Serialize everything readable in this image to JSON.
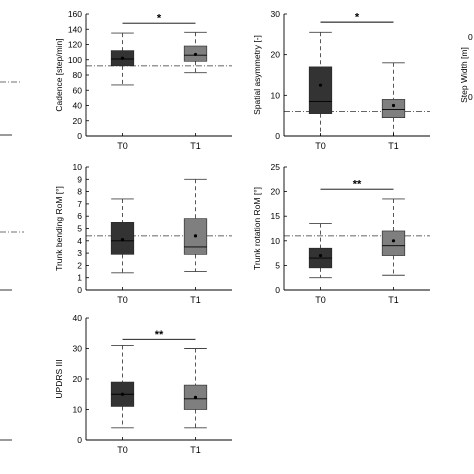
{
  "colors": {
    "t0": "#333333",
    "t1": "#7f7f7f",
    "axis": "#000000",
    "whisker": "#444444"
  },
  "chart_data": [
    {
      "type": "box",
      "ylabel": "Cadence [step/min]",
      "categories": [
        "T0",
        "T1"
      ],
      "ylim": [
        0,
        160
      ],
      "yticks": [
        0,
        20,
        40,
        60,
        80,
        100,
        120,
        140,
        160
      ],
      "reference_line": 92,
      "boxes": [
        {
          "category": "T0",
          "min": 67,
          "q1": 92,
          "median": 101,
          "q3": 112,
          "max": 135,
          "mean": 102
        },
        {
          "category": "T1",
          "min": 83,
          "q1": 98,
          "median": 106,
          "q3": 118,
          "max": 136,
          "mean": 107
        }
      ],
      "significance": [
        {
          "between": [
            "T0",
            "T1"
          ],
          "label": "*",
          "y": 148
        }
      ]
    },
    {
      "type": "box",
      "ylabel": "Spatial asymmetry [-]",
      "categories": [
        "T0",
        "T1"
      ],
      "ylim": [
        0,
        30
      ],
      "yticks": [
        0,
        10,
        20,
        30
      ],
      "reference_line": 6,
      "boxes": [
        {
          "category": "T0",
          "min": 0,
          "q1": 5.5,
          "median": 8.5,
          "q3": 17,
          "max": 25.5,
          "mean": 12.5
        },
        {
          "category": "T1",
          "min": 0,
          "q1": 4.5,
          "median": 6.5,
          "q3": 9,
          "max": 18,
          "mean": 7.5
        }
      ],
      "significance": [
        {
          "between": [
            "T0",
            "T1"
          ],
          "label": "*",
          "y": 28
        }
      ]
    },
    {
      "type": "box",
      "ylabel": "Trunk bending RoM [°]",
      "categories": [
        "T0",
        "T1"
      ],
      "ylim": [
        0,
        10
      ],
      "yticks": [
        0,
        1,
        2,
        3,
        4,
        5,
        6,
        7,
        8,
        9,
        10
      ],
      "reference_line": 4.4,
      "boxes": [
        {
          "category": "T0",
          "min": 1.4,
          "q1": 2.9,
          "median": 4.0,
          "q3": 5.5,
          "max": 7.4,
          "mean": 4.1
        },
        {
          "category": "T1",
          "min": 1.5,
          "q1": 2.9,
          "median": 3.5,
          "q3": 5.8,
          "max": 9.0,
          "mean": 4.4
        }
      ],
      "significance": []
    },
    {
      "type": "box",
      "ylabel": "Trunk rotation RoM [°]",
      "categories": [
        "T0",
        "T1"
      ],
      "ylim": [
        0,
        25
      ],
      "yticks": [
        0,
        5,
        10,
        15,
        20,
        25
      ],
      "reference_line": 11,
      "boxes": [
        {
          "category": "T0",
          "min": 2.5,
          "q1": 4.5,
          "median": 6.5,
          "q3": 8.5,
          "max": 13.5,
          "mean": 7
        },
        {
          "category": "T1",
          "min": 3,
          "q1": 7,
          "median": 9,
          "q3": 12,
          "max": 18.5,
          "mean": 10
        }
      ],
      "significance": [
        {
          "between": [
            "T0",
            "T1"
          ],
          "label": "**",
          "y": 20.5
        }
      ]
    },
    {
      "type": "box",
      "ylabel": "UPDRS III",
      "categories": [
        "T0",
        "T1"
      ],
      "ylim": [
        0,
        40
      ],
      "yticks": [
        0,
        10,
        20,
        30,
        40
      ],
      "reference_line": null,
      "boxes": [
        {
          "category": "T0",
          "min": 4,
          "q1": 11,
          "median": 15,
          "q3": 19,
          "max": 31,
          "mean": 15
        },
        {
          "category": "T1",
          "min": 4,
          "q1": 10,
          "median": 13.5,
          "q3": 18,
          "max": 30,
          "mean": 14
        }
      ],
      "significance": [
        {
          "between": [
            "T0",
            "T1"
          ],
          "label": "**",
          "y": 33
        }
      ]
    }
  ],
  "partial_panels": {
    "right_label_text": "Step Width [m]",
    "right_tick_top": "0",
    "right_tick_bottom": "0"
  }
}
